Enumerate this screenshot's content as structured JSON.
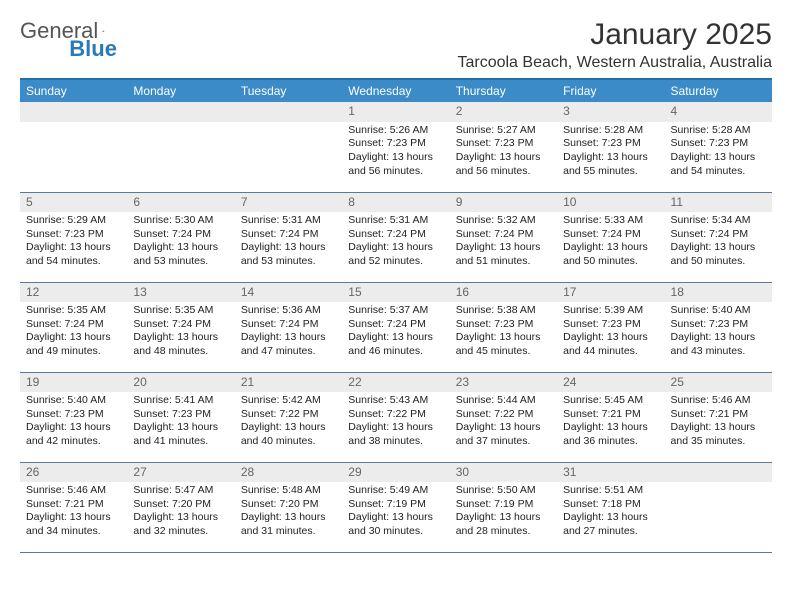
{
  "logo": {
    "text1": "General",
    "text2": "Blue"
  },
  "title": "January 2025",
  "location": "Tarcoola Beach, Western Australia, Australia",
  "colors": {
    "header_bg": "#3b8bc9",
    "header_border": "#2a6fa3",
    "daynum_bg": "#ececec",
    "cell_border": "#5a7a9a",
    "logo_blue": "#2a7ab8"
  },
  "dayHeaders": [
    "Sunday",
    "Monday",
    "Tuesday",
    "Wednesday",
    "Thursday",
    "Friday",
    "Saturday"
  ],
  "weeks": [
    [
      null,
      null,
      null,
      {
        "n": "1",
        "sr": "5:26 AM",
        "ss": "7:23 PM",
        "dl": "13 hours and 56 minutes."
      },
      {
        "n": "2",
        "sr": "5:27 AM",
        "ss": "7:23 PM",
        "dl": "13 hours and 56 minutes."
      },
      {
        "n": "3",
        "sr": "5:28 AM",
        "ss": "7:23 PM",
        "dl": "13 hours and 55 minutes."
      },
      {
        "n": "4",
        "sr": "5:28 AM",
        "ss": "7:23 PM",
        "dl": "13 hours and 54 minutes."
      }
    ],
    [
      {
        "n": "5",
        "sr": "5:29 AM",
        "ss": "7:23 PM",
        "dl": "13 hours and 54 minutes."
      },
      {
        "n": "6",
        "sr": "5:30 AM",
        "ss": "7:24 PM",
        "dl": "13 hours and 53 minutes."
      },
      {
        "n": "7",
        "sr": "5:31 AM",
        "ss": "7:24 PM",
        "dl": "13 hours and 53 minutes."
      },
      {
        "n": "8",
        "sr": "5:31 AM",
        "ss": "7:24 PM",
        "dl": "13 hours and 52 minutes."
      },
      {
        "n": "9",
        "sr": "5:32 AM",
        "ss": "7:24 PM",
        "dl": "13 hours and 51 minutes."
      },
      {
        "n": "10",
        "sr": "5:33 AM",
        "ss": "7:24 PM",
        "dl": "13 hours and 50 minutes."
      },
      {
        "n": "11",
        "sr": "5:34 AM",
        "ss": "7:24 PM",
        "dl": "13 hours and 50 minutes."
      }
    ],
    [
      {
        "n": "12",
        "sr": "5:35 AM",
        "ss": "7:24 PM",
        "dl": "13 hours and 49 minutes."
      },
      {
        "n": "13",
        "sr": "5:35 AM",
        "ss": "7:24 PM",
        "dl": "13 hours and 48 minutes."
      },
      {
        "n": "14",
        "sr": "5:36 AM",
        "ss": "7:24 PM",
        "dl": "13 hours and 47 minutes."
      },
      {
        "n": "15",
        "sr": "5:37 AM",
        "ss": "7:24 PM",
        "dl": "13 hours and 46 minutes."
      },
      {
        "n": "16",
        "sr": "5:38 AM",
        "ss": "7:23 PM",
        "dl": "13 hours and 45 minutes."
      },
      {
        "n": "17",
        "sr": "5:39 AM",
        "ss": "7:23 PM",
        "dl": "13 hours and 44 minutes."
      },
      {
        "n": "18",
        "sr": "5:40 AM",
        "ss": "7:23 PM",
        "dl": "13 hours and 43 minutes."
      }
    ],
    [
      {
        "n": "19",
        "sr": "5:40 AM",
        "ss": "7:23 PM",
        "dl": "13 hours and 42 minutes."
      },
      {
        "n": "20",
        "sr": "5:41 AM",
        "ss": "7:23 PM",
        "dl": "13 hours and 41 minutes."
      },
      {
        "n": "21",
        "sr": "5:42 AM",
        "ss": "7:22 PM",
        "dl": "13 hours and 40 minutes."
      },
      {
        "n": "22",
        "sr": "5:43 AM",
        "ss": "7:22 PM",
        "dl": "13 hours and 38 minutes."
      },
      {
        "n": "23",
        "sr": "5:44 AM",
        "ss": "7:22 PM",
        "dl": "13 hours and 37 minutes."
      },
      {
        "n": "24",
        "sr": "5:45 AM",
        "ss": "7:21 PM",
        "dl": "13 hours and 36 minutes."
      },
      {
        "n": "25",
        "sr": "5:46 AM",
        "ss": "7:21 PM",
        "dl": "13 hours and 35 minutes."
      }
    ],
    [
      {
        "n": "26",
        "sr": "5:46 AM",
        "ss": "7:21 PM",
        "dl": "13 hours and 34 minutes."
      },
      {
        "n": "27",
        "sr": "5:47 AM",
        "ss": "7:20 PM",
        "dl": "13 hours and 32 minutes."
      },
      {
        "n": "28",
        "sr": "5:48 AM",
        "ss": "7:20 PM",
        "dl": "13 hours and 31 minutes."
      },
      {
        "n": "29",
        "sr": "5:49 AM",
        "ss": "7:19 PM",
        "dl": "13 hours and 30 minutes."
      },
      {
        "n": "30",
        "sr": "5:50 AM",
        "ss": "7:19 PM",
        "dl": "13 hours and 28 minutes."
      },
      {
        "n": "31",
        "sr": "5:51 AM",
        "ss": "7:18 PM",
        "dl": "13 hours and 27 minutes."
      },
      null
    ]
  ],
  "labels": {
    "sunrise": "Sunrise: ",
    "sunset": "Sunset: ",
    "daylight": "Daylight: "
  }
}
